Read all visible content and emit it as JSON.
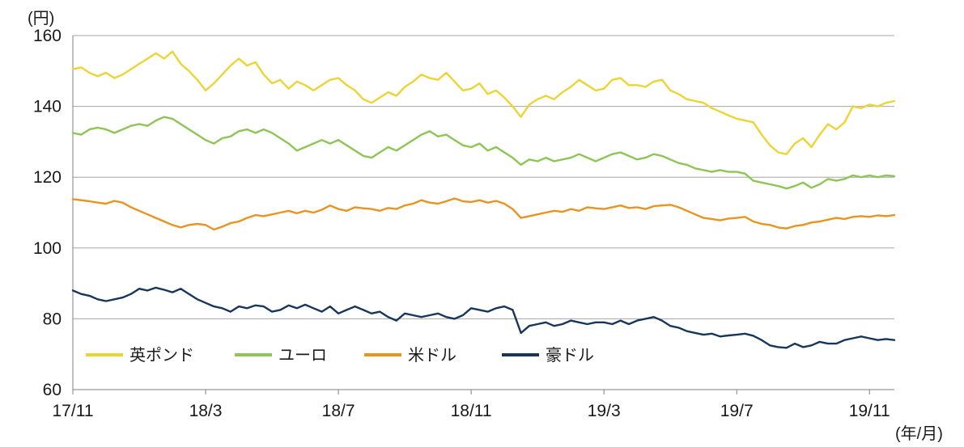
{
  "chart_data": {
    "type": "line",
    "title": "",
    "y_unit_label": "(円)",
    "x_unit_label": "(年/月)",
    "ylim": [
      60,
      160
    ],
    "y_ticks": [
      60,
      80,
      100,
      120,
      140,
      160
    ],
    "x_range": [
      0,
      24.75
    ],
    "x_axis_note": "months since 2017-11, samples evenly spaced (approx. weekly)",
    "x_ticks": [
      {
        "label": "17/11",
        "m": 0
      },
      {
        "label": "18/3",
        "m": 4
      },
      {
        "label": "18/7",
        "m": 8
      },
      {
        "label": "18/11",
        "m": 12
      },
      {
        "label": "19/3",
        "m": 16
      },
      {
        "label": "19/7",
        "m": 20
      },
      {
        "label": "19/11",
        "m": 24
      }
    ],
    "grid_color": "#a6a6a6",
    "axis_color": "#808080",
    "text_color": "#1a1a1a",
    "legend_position": "bottom-inside",
    "series": [
      {
        "name": "英ポンド",
        "color": "#ecd435",
        "values": [
          150.5,
          151,
          149.5,
          148.5,
          149.5,
          148,
          149,
          150.5,
          152,
          153.5,
          155,
          153.5,
          155.5,
          152,
          150,
          147.5,
          144.5,
          146.5,
          149,
          151.5,
          153.5,
          151.5,
          152.5,
          149,
          146.5,
          147.5,
          145,
          147,
          146,
          144.5,
          146,
          147.5,
          148,
          146,
          144.5,
          142,
          141,
          142.5,
          144,
          143,
          145.5,
          147,
          149,
          148,
          147.5,
          149.5,
          147,
          144.5,
          145,
          146.5,
          143.5,
          144.5,
          142.5,
          140,
          137,
          140.5,
          142,
          143,
          142,
          144,
          145.5,
          147.5,
          146,
          144.5,
          145,
          147.5,
          148,
          146,
          146,
          145.5,
          147,
          147.5,
          144.5,
          143.5,
          142,
          141.5,
          141,
          139.5,
          138.5,
          137.5,
          136.5,
          136,
          135.5,
          132,
          129,
          127,
          126.5,
          129.5,
          131,
          128.5,
          132,
          135,
          133.5,
          135.5,
          140,
          139.5,
          140.5,
          140,
          141,
          141.5
        ]
      },
      {
        "name": "ユーロ",
        "color": "#8dc656",
        "values": [
          132.5,
          132,
          133.5,
          134,
          133.5,
          132.5,
          133.5,
          134.5,
          135,
          134.5,
          136,
          137,
          136.5,
          135,
          133.5,
          132,
          130.5,
          129.5,
          131,
          131.5,
          133,
          133.5,
          132.5,
          133.5,
          132.5,
          131,
          129.5,
          127.5,
          128.5,
          129.5,
          130.5,
          129.5,
          130.5,
          129,
          127.5,
          126,
          125.5,
          127,
          128.5,
          127.5,
          129,
          130.5,
          132,
          133,
          131.5,
          132,
          130.5,
          129,
          128.5,
          129.5,
          127.5,
          128.5,
          127,
          125.5,
          123.5,
          125,
          124.5,
          125.5,
          124.5,
          125,
          125.5,
          126.5,
          125.5,
          124.5,
          125.5,
          126.5,
          127,
          126,
          125,
          125.5,
          126.5,
          126,
          125,
          124,
          123.5,
          122.5,
          122,
          121.5,
          122,
          121.5,
          121.5,
          121,
          119,
          118.5,
          118,
          117.5,
          116.8,
          117.5,
          118.5,
          117,
          118,
          119.5,
          119,
          119.5,
          120.5,
          120,
          120.5,
          120,
          120.5,
          120.3
        ]
      },
      {
        "name": "米ドル",
        "color": "#e8941e",
        "values": [
          113.8,
          113.5,
          113.2,
          112.8,
          112.5,
          113.3,
          112.8,
          111.5,
          110.5,
          109.5,
          108.5,
          107.5,
          106.5,
          105.8,
          106.5,
          106.8,
          106.5,
          105.2,
          106,
          107,
          107.5,
          108.5,
          109.3,
          109,
          109.5,
          110,
          110.5,
          109.8,
          110.5,
          110,
          110.8,
          112,
          111,
          110.5,
          111.5,
          111.2,
          111,
          110.5,
          111.3,
          111,
          112,
          112.5,
          113.5,
          112.8,
          112.5,
          113.2,
          114,
          113.2,
          113,
          113.5,
          112.8,
          113.3,
          112.5,
          111,
          108.5,
          109,
          109.5,
          110,
          110.5,
          110.2,
          111,
          110.5,
          111.5,
          111.2,
          111,
          111.5,
          112,
          111.3,
          111.5,
          111,
          111.8,
          112,
          112.2,
          111.5,
          110.5,
          109.5,
          108.5,
          108.2,
          107.8,
          108.3,
          108.5,
          108.8,
          107.5,
          106.8,
          106.5,
          105.8,
          105.5,
          106.2,
          106.5,
          107.2,
          107.5,
          108,
          108.5,
          108.2,
          108.8,
          109,
          108.8,
          109.2,
          109,
          109.3
        ]
      },
      {
        "name": "豪ドル",
        "color": "#17365d",
        "values": [
          88,
          87,
          86.5,
          85.5,
          85,
          85.5,
          86,
          87,
          88.5,
          88,
          88.8,
          88.2,
          87.5,
          88.5,
          87,
          85.5,
          84.5,
          83.5,
          83,
          82,
          83.5,
          83,
          83.8,
          83.5,
          82,
          82.5,
          83.8,
          83,
          84,
          83,
          82,
          83.5,
          81.5,
          82.5,
          83.5,
          82.5,
          81.5,
          82,
          80.5,
          79.5,
          81.5,
          81,
          80.5,
          81,
          81.5,
          80.5,
          80,
          81,
          83,
          82.5,
          82,
          83,
          83.5,
          82.5,
          76,
          78,
          78.5,
          79,
          78,
          78.5,
          79.5,
          79,
          78.5,
          79,
          79,
          78.5,
          79.5,
          78.5,
          79.5,
          80,
          80.5,
          79.5,
          78,
          77.5,
          76.5,
          76,
          75.5,
          75.8,
          75,
          75.3,
          75.5,
          75.8,
          75.2,
          74,
          72.5,
          72,
          71.8,
          73,
          72,
          72.5,
          73.5,
          73,
          73,
          74,
          74.5,
          75,
          74.5,
          74,
          74.3,
          74
        ]
      }
    ]
  }
}
